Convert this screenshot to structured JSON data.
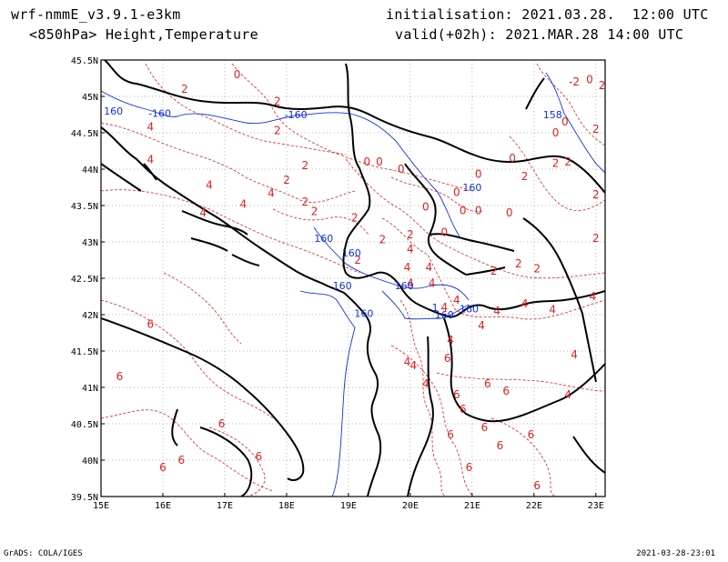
{
  "header": {
    "model": "wrf-nmmE_v3.9.1-e3km",
    "level_fields": "<850hPa> Height,Temperature",
    "initialisation": "initialisation: 2021.03.28.  12:00 UTC",
    "valid": "valid(+02h): 2021.MAR.28 14:00 UTC"
  },
  "footer": {
    "left": "GrADS: COLA/IGES",
    "right": "2021-03-28-23:01"
  },
  "axes": {
    "lon_labels": [
      "15E",
      "16E",
      "17E",
      "18E",
      "19E",
      "20E",
      "21E",
      "22E",
      "23E"
    ],
    "lat_labels": [
      "45.5N",
      "45N",
      "44.5N",
      "44N",
      "43.5N",
      "43N",
      "42.5N",
      "42N",
      "41.5N",
      "41N",
      "40.5N",
      "40N",
      "39.5N"
    ]
  },
  "colors": {
    "temperature": "#e02020",
    "height": "#1030e0",
    "coast": "#000000",
    "grid": "#9a9a9a"
  },
  "temperature_labels": [
    {
      "text": "0",
      "lon": 17.2,
      "lat": 45.25
    },
    {
      "text": "2",
      "lon": 16.35,
      "lat": 45.05
    },
    {
      "text": "2",
      "lon": 17.85,
      "lat": 44.88
    },
    {
      "text": "2",
      "lon": 17.85,
      "lat": 44.48
    },
    {
      "text": "4",
      "lon": 15.8,
      "lat": 44.53
    },
    {
      "text": "4",
      "lon": 15.8,
      "lat": 44.08
    },
    {
      "text": "4",
      "lon": 16.75,
      "lat": 43.73
    },
    {
      "text": "4",
      "lon": 17.75,
      "lat": 43.62
    },
    {
      "text": "4",
      "lon": 17.3,
      "lat": 43.47
    },
    {
      "text": "4",
      "lon": 16.65,
      "lat": 43.35
    },
    {
      "text": "2",
      "lon": 18.0,
      "lat": 43.8
    },
    {
      "text": "2",
      "lon": 18.3,
      "lat": 44.0
    },
    {
      "text": "2",
      "lon": 18.3,
      "lat": 43.5
    },
    {
      "text": "2",
      "lon": 18.45,
      "lat": 43.37
    },
    {
      "text": "0",
      "lon": 19.3,
      "lat": 44.05
    },
    {
      "text": "0",
      "lon": 19.5,
      "lat": 44.05
    },
    {
      "text": "0",
      "lon": 19.85,
      "lat": 43.95
    },
    {
      "text": "0",
      "lon": 20.25,
      "lat": 43.43
    },
    {
      "text": "0",
      "lon": 20.75,
      "lat": 43.63
    },
    {
      "text": "0",
      "lon": 20.85,
      "lat": 43.38
    },
    {
      "text": "0",
      "lon": 21.1,
      "lat": 43.38
    },
    {
      "text": "0",
      "lon": 21.6,
      "lat": 43.35
    },
    {
      "text": "0",
      "lon": 21.1,
      "lat": 43.88
    },
    {
      "text": "0",
      "lon": 21.65,
      "lat": 44.1
    },
    {
      "text": "2",
      "lon": 21.85,
      "lat": 43.85
    },
    {
      "text": "2",
      "lon": 22.35,
      "lat": 44.03
    },
    {
      "text": "2",
      "lon": 19.1,
      "lat": 43.28
    },
    {
      "text": "2",
      "lon": 19.55,
      "lat": 42.98
    },
    {
      "text": "2",
      "lon": 20.0,
      "lat": 43.05
    },
    {
      "text": "0",
      "lon": 20.55,
      "lat": 43.08
    },
    {
      "text": "4",
      "lon": 20.0,
      "lat": 42.85
    },
    {
      "text": "2",
      "lon": 19.15,
      "lat": 42.7
    },
    {
      "text": "4",
      "lon": 19.95,
      "lat": 42.6
    },
    {
      "text": "4",
      "lon": 20.3,
      "lat": 42.6
    },
    {
      "text": "4",
      "lon": 20.0,
      "lat": 42.38
    },
    {
      "text": "4",
      "lon": 20.35,
      "lat": 42.38
    },
    {
      "text": "4",
      "lon": 20.75,
      "lat": 42.15
    },
    {
      "text": "4",
      "lon": 20.55,
      "lat": 42.05
    },
    {
      "text": "4",
      "lon": 21.4,
      "lat": 42.0
    },
    {
      "text": "4",
      "lon": 21.15,
      "lat": 41.8
    },
    {
      "text": "2",
      "lon": 21.35,
      "lat": 42.55
    },
    {
      "text": "2",
      "lon": 21.75,
      "lat": 42.65
    },
    {
      "text": "2",
      "lon": 22.05,
      "lat": 42.58
    },
    {
      "text": "4",
      "lon": 21.85,
      "lat": 42.1
    },
    {
      "text": "4",
      "lon": 22.3,
      "lat": 42.02
    },
    {
      "text": "4",
      "lon": 22.55,
      "lat": 40.85
    },
    {
      "text": "4",
      "lon": 22.65,
      "lat": 41.4
    },
    {
      "text": "4",
      "lon": 22.95,
      "lat": 42.2
    },
    {
      "text": "2",
      "lon": 23.0,
      "lat": 43.0
    },
    {
      "text": "2",
      "lon": 23.0,
      "lat": 43.6
    },
    {
      "text": "2",
      "lon": 22.55,
      "lat": 44.05
    },
    {
      "text": "2",
      "lon": 23.0,
      "lat": 44.5
    },
    {
      "text": "2",
      "lon": 23.1,
      "lat": 45.1
    },
    {
      "text": "0",
      "lon": 22.9,
      "lat": 45.18
    },
    {
      "text": "-2",
      "lon": 22.65,
      "lat": 45.15
    },
    {
      "text": "0",
      "lon": 22.5,
      "lat": 44.6
    },
    {
      "text": "0",
      "lon": 22.35,
      "lat": 44.45
    },
    {
      "text": "4",
      "lon": 19.95,
      "lat": 41.3
    },
    {
      "text": "4",
      "lon": 20.25,
      "lat": 41.0
    },
    {
      "text": "4",
      "lon": 20.05,
      "lat": 41.25
    },
    {
      "text": "4",
      "lon": 20.65,
      "lat": 41.6
    },
    {
      "text": "6",
      "lon": 20.6,
      "lat": 41.35
    },
    {
      "text": "6",
      "lon": 20.75,
      "lat": 40.85
    },
    {
      "text": "6",
      "lon": 21.25,
      "lat": 41.0
    },
    {
      "text": "6",
      "lon": 21.55,
      "lat": 40.9
    },
    {
      "text": "6",
      "lon": 20.85,
      "lat": 40.65
    },
    {
      "text": "6",
      "lon": 21.2,
      "lat": 40.4
    },
    {
      "text": "6",
      "lon": 20.65,
      "lat": 40.3
    },
    {
      "text": "6",
      "lon": 21.45,
      "lat": 40.15
    },
    {
      "text": "6",
      "lon": 21.95,
      "lat": 40.3
    },
    {
      "text": "6",
      "lon": 22.05,
      "lat": 39.6
    },
    {
      "text": "6",
      "lon": 20.95,
      "lat": 39.85
    },
    {
      "text": "6",
      "lon": 15.8,
      "lat": 41.82
    },
    {
      "text": "6",
      "lon": 15.3,
      "lat": 41.1
    },
    {
      "text": "6",
      "lon": 16.0,
      "lat": 39.85
    },
    {
      "text": "6",
      "lon": 16.3,
      "lat": 39.95
    },
    {
      "text": "6",
      "lon": 16.95,
      "lat": 40.45
    },
    {
      "text": "6",
      "lon": 17.55,
      "lat": 40.0
    }
  ],
  "height_labels": [
    {
      "text": "160",
      "lon": 15.2,
      "lat": 44.75
    },
    {
      "text": "-160",
      "lon": 15.95,
      "lat": 44.72
    },
    {
      "text": "-160",
      "lon": 18.15,
      "lat": 44.7
    },
    {
      "text": "158",
      "lon": 22.3,
      "lat": 44.7
    },
    {
      "text": "160",
      "lon": 21.0,
      "lat": 43.7
    },
    {
      "text": "160",
      "lon": 18.6,
      "lat": 43.0
    },
    {
      "text": "160",
      "lon": 19.05,
      "lat": 42.8
    },
    {
      "text": "160",
      "lon": 18.9,
      "lat": 42.35
    },
    {
      "text": "160",
      "lon": 19.9,
      "lat": 42.35
    },
    {
      "text": "1",
      "lon": 20.4,
      "lat": 42.05
    },
    {
      "text": "160",
      "lon": 20.95,
      "lat": 42.03
    },
    {
      "text": "160",
      "lon": 20.55,
      "lat": 41.95
    },
    {
      "text": "160",
      "lon": 19.25,
      "lat": 41.97
    }
  ]
}
